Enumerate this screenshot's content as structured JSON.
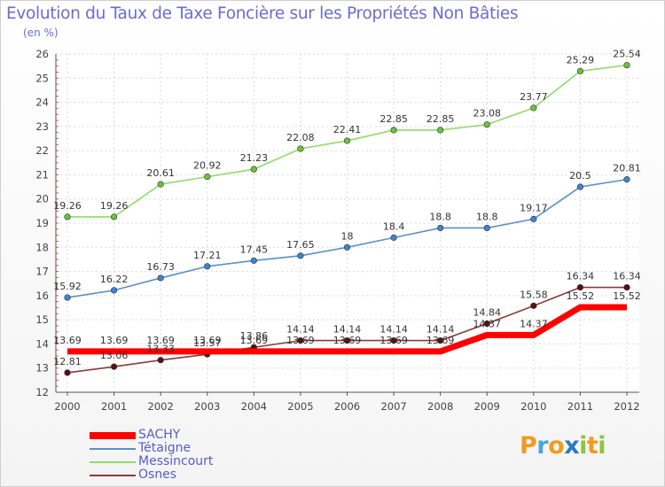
{
  "title": "Evolution du Taux de Taxe Foncière sur les Propriétés Non Bâties",
  "ylabel": "(en %)",
  "brand": {
    "letters": [
      "P",
      "r",
      "o",
      "x",
      "i",
      "t",
      "i"
    ],
    "colors": [
      "#f29a1f",
      "#4aa8d8",
      "#f29a1f",
      "#2b78c2",
      "#8cc63f",
      "#f29a1f",
      "#8cc63f"
    ]
  },
  "chart_data": {
    "type": "line",
    "title": "Evolution du Taux de Taxe Foncière sur les Propriétés Non Bâties",
    "ylabel": "(en %)",
    "xlabel": "",
    "x": [
      "2000",
      "2001",
      "2002",
      "2003",
      "2004",
      "2005",
      "2006",
      "2007",
      "2008",
      "2009",
      "2010",
      "2011",
      "2012"
    ],
    "ylim": [
      12,
      26
    ],
    "yticks": [
      "12",
      "13",
      "14",
      "15",
      "16",
      "17",
      "18",
      "19",
      "20",
      "21",
      "22",
      "23",
      "24",
      "25",
      "26"
    ],
    "grid": true,
    "legend_position": "bottom-left",
    "series": [
      {
        "name": "SACHY",
        "color": "#ff0000",
        "point_color": "#ff0000",
        "values": [
          13.69,
          13.69,
          13.69,
          13.69,
          13.69,
          13.69,
          13.69,
          13.69,
          13.69,
          14.37,
          14.37,
          15.52,
          15.52
        ],
        "labels": [
          "13.69",
          "13.69",
          "13.69",
          "13.69",
          "13.69",
          "13.69",
          "13.69",
          "13.69",
          "13.69",
          "14.37",
          "14.37",
          "15.52",
          "15.52"
        ]
      },
      {
        "name": "Tétaigne",
        "color": "#5b8fc9",
        "point_color": "#3a86cf",
        "values": [
          15.92,
          16.22,
          16.73,
          17.21,
          17.45,
          17.65,
          18.0,
          18.4,
          18.8,
          18.8,
          19.17,
          20.5,
          20.81
        ],
        "labels": [
          "15.92",
          "16.22",
          "16.73",
          "17.21",
          "17.45",
          "17.65",
          "18",
          "18.4",
          "18.8",
          "18.8",
          "19.17",
          "20.5",
          "20.81"
        ]
      },
      {
        "name": "Messincourt",
        "color": "#8fdc6a",
        "point_color": "#6cc23a",
        "values": [
          19.26,
          19.26,
          20.61,
          20.92,
          21.23,
          22.08,
          22.41,
          22.85,
          22.85,
          23.08,
          23.77,
          25.29,
          25.54
        ],
        "labels": [
          "19.26",
          "19.26",
          "20.61",
          "20.92",
          "21.23",
          "22.08",
          "22.41",
          "22.85",
          "22.85",
          "23.08",
          "23.77",
          "25.29",
          "25.54"
        ]
      },
      {
        "name": "Osnes",
        "color": "#8a3a3a",
        "point_color": "#5a1010",
        "values": [
          12.81,
          13.06,
          13.33,
          13.57,
          13.86,
          14.14,
          14.14,
          14.14,
          14.14,
          14.84,
          15.58,
          16.34,
          16.34
        ],
        "labels": [
          "12.81",
          "13.06",
          "13.33",
          "13.57",
          "13.86",
          "14.14",
          "14.14",
          "14.14",
          "14.14",
          "14.84",
          "15.58",
          "16.34",
          "16.34"
        ]
      }
    ]
  }
}
